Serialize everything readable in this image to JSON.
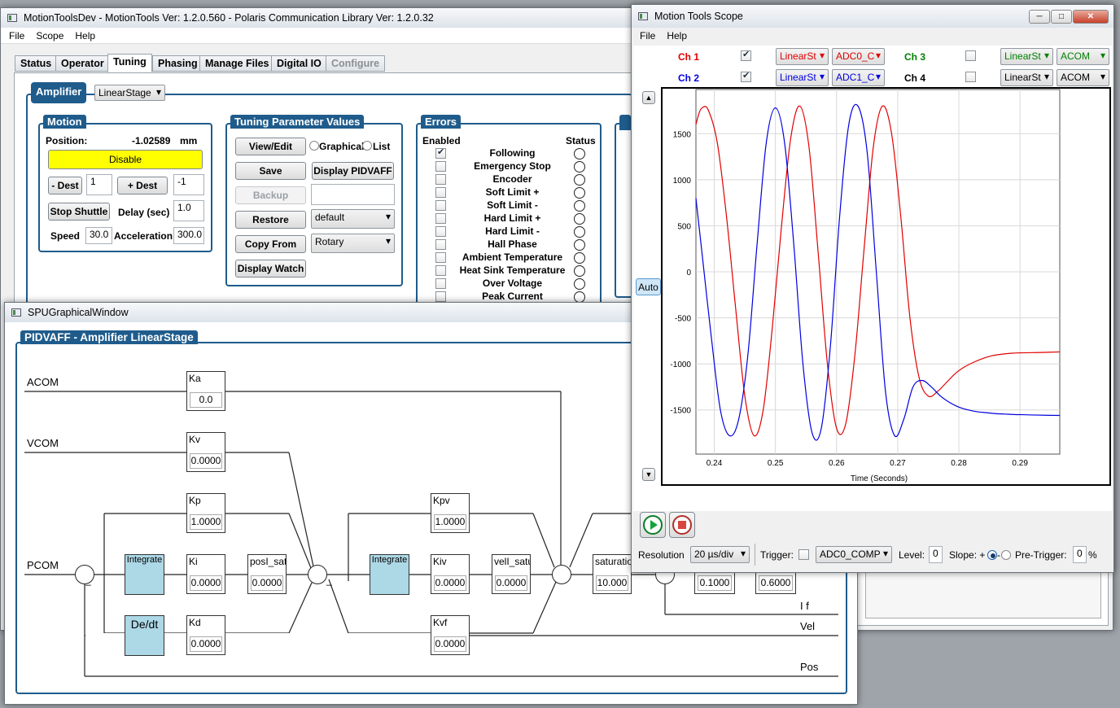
{
  "main": {
    "title": "MotionToolsDev - MotionTools Ver: 1.2.0.560 - Polaris Communication Library Ver: 1.2.0.32",
    "menu": [
      "File",
      "Scope",
      "Help"
    ],
    "tabs": [
      "Status",
      "Operator",
      "Tuning",
      "Phasing",
      "Manage Files",
      "Digital IO",
      "Configure"
    ],
    "amplifier": {
      "label": "Amplifier",
      "value": "LinearStage"
    },
    "motion": {
      "title": "Motion",
      "position_label": "Position:",
      "position_value": "-1.02589",
      "position_unit": "mm",
      "disable": "Disable",
      "minus_dest": "- Dest",
      "minus_val": "1",
      "plus_dest": "+ Dest",
      "plus_val": "-1",
      "stop": "Stop Shuttle",
      "delay_label": "Delay (sec)",
      "delay_val": "1.0",
      "speed_label": "Speed",
      "speed_val": "30.0",
      "accel_label": "Acceleration",
      "accel_val": "300.0"
    },
    "tuning": {
      "title": "Tuning Parameter Values",
      "view_edit": "View/Edit",
      "graphical": "Graphical",
      "list": "List",
      "save": "Save",
      "display_pidvaff": "Display PIDVAFF",
      "backup": "Backup",
      "restore": "Restore",
      "restore_val": "default",
      "copy_from": "Copy From",
      "copy_val": "Rotary",
      "display_watch": "Display Watch"
    },
    "errors": {
      "title": "Errors",
      "enabled": "Enabled",
      "status": "Status",
      "items": [
        "Following",
        "Emergency Stop",
        "Encoder",
        "Soft Limit +",
        "Soft Limit -",
        "Hard Limit +",
        "Hard Limit -",
        "Hall Phase",
        "Ambient Temperature",
        "Heat Sink Temperature",
        "Over Voltage",
        "Peak Current"
      ]
    }
  },
  "spu": {
    "title": "SPUGraphicalWindow",
    "heading": "PIDVAFF - Amplifier LinearStage",
    "signals": {
      "acom": "ACOM",
      "vcom": "VCOM",
      "pcom": "PCOM",
      "if": "I f",
      "vel": "Vel",
      "pos": "Pos"
    },
    "params": {
      "ka": "Ka",
      "ka_v": "0.0",
      "kv": "Kv",
      "kv_v": "0.0000",
      "kp": "Kp",
      "kp_v": "1.0000",
      "ki": "Ki",
      "ki_v": "0.0000",
      "kd": "Kd",
      "kd_v": "0.0000",
      "posi": "posI_satu",
      "posi_v": "0.0000",
      "kpv": "Kpv",
      "kpv_v": "1.0000",
      "kiv": "Kiv",
      "kiv_v": "0.0000",
      "veli": "velI_satur",
      "veli_v": "0.0000",
      "kvf": "Kvf",
      "kvf_v": "0.0000",
      "sat": "saturatio",
      "sat_v": "10.000",
      "x1_v": "0.1000",
      "x2_v": "0.6000"
    },
    "integrate": "Integrate",
    "dedt": "De/dt",
    "minus": "_"
  },
  "scope": {
    "title": "Motion Tools Scope",
    "menu": [
      "File",
      "Help"
    ],
    "ch1": "Ch 1",
    "ch2": "Ch 2",
    "ch3": "Ch 3",
    "ch4": "Ch 4",
    "ch1_dev": "LinearSt",
    "ch1_sig": "ADC0_C",
    "ch2_dev": "LinearSt",
    "ch2_sig": "ADC1_C",
    "ch3_dev": "LinearSt",
    "ch3_sig": "ACOM",
    "ch4_dev": "LinearSt",
    "ch4_sig": "ACOM",
    "auto": "Auto",
    "resolution_label": "Resolution",
    "resolution": "20 µs/div",
    "trigger_label": "Trigger:",
    "trigger_sig": "ADC0_COMP",
    "level_label": "Level:",
    "level": "0",
    "slope_label": "Slope: +",
    "slope_minus": "-",
    "pretrigger_label": "Pre-Trigger:",
    "pretrigger": "0",
    "pct": "%",
    "colors": {
      "ch1": "#e00000",
      "ch2": "#0000e0",
      "ch3": "#008000"
    }
  },
  "chart_data": {
    "type": "line",
    "xlabel": "Time (Seconds)",
    "ylabel": "",
    "xlim": [
      0.237,
      0.2965
    ],
    "ylim": [
      -1980,
      1980
    ],
    "xticks": [
      0.24,
      0.25,
      0.26,
      0.27,
      0.28,
      0.29
    ],
    "yticks": [
      1500,
      1000,
      500,
      0,
      -500,
      -1000,
      -1500
    ],
    "series": [
      {
        "color": "#e00000",
        "x": [
          0.237,
          0.2375,
          0.238,
          0.239,
          0.2405,
          0.242,
          0.2435,
          0.245,
          0.2465,
          0.248,
          0.2495,
          0.251,
          0.2525,
          0.254,
          0.2555,
          0.257,
          0.2585,
          0.26,
          0.2615,
          0.263,
          0.2645,
          0.266,
          0.2675,
          0.269,
          0.2705,
          0.272,
          0.2735,
          0.275,
          0.2765,
          0.278,
          0.2795,
          0.281,
          0.2825,
          0.284,
          0.2855,
          0.287,
          0.2885,
          0.29,
          0.292,
          0.294,
          0.2965
        ],
        "y": [
          1600,
          1720,
          1780,
          1760,
          1400,
          600,
          -400,
          -1350,
          -1780,
          -1500,
          -600,
          500,
          1450,
          1800,
          1350,
          200,
          -1000,
          -1700,
          -1650,
          -900,
          250,
          1350,
          1800,
          1500,
          600,
          -500,
          -1150,
          -1350,
          -1300,
          -1200,
          -1100,
          -1030,
          -980,
          -940,
          -910,
          -895,
          -885,
          -880,
          -878,
          -875,
          -870
        ]
      },
      {
        "color": "#0000e0",
        "x": [
          0.237,
          0.238,
          0.2395,
          0.241,
          0.2425,
          0.244,
          0.2455,
          0.247,
          0.2485,
          0.25,
          0.2515,
          0.253,
          0.2545,
          0.256,
          0.2575,
          0.259,
          0.2605,
          0.262,
          0.2635,
          0.265,
          0.2665,
          0.268,
          0.2695,
          0.271,
          0.2725,
          0.274,
          0.2755,
          0.277,
          0.2785,
          0.28,
          0.2815,
          0.283,
          0.2845,
          0.286,
          0.2875,
          0.289,
          0.2905,
          0.292,
          0.294,
          0.2965
        ],
        "y": [
          800,
          200,
          -700,
          -1500,
          -1780,
          -1600,
          -900,
          300,
          1400,
          1780,
          1400,
          300,
          -1000,
          -1750,
          -1700,
          -800,
          600,
          1600,
          1800,
          1300,
          0,
          -1300,
          -1780,
          -1600,
          -1250,
          -1180,
          -1250,
          -1350,
          -1420,
          -1470,
          -1500,
          -1520,
          -1530,
          -1540,
          -1545,
          -1550,
          -1552,
          -1555,
          -1558,
          -1560
        ]
      }
    ]
  }
}
